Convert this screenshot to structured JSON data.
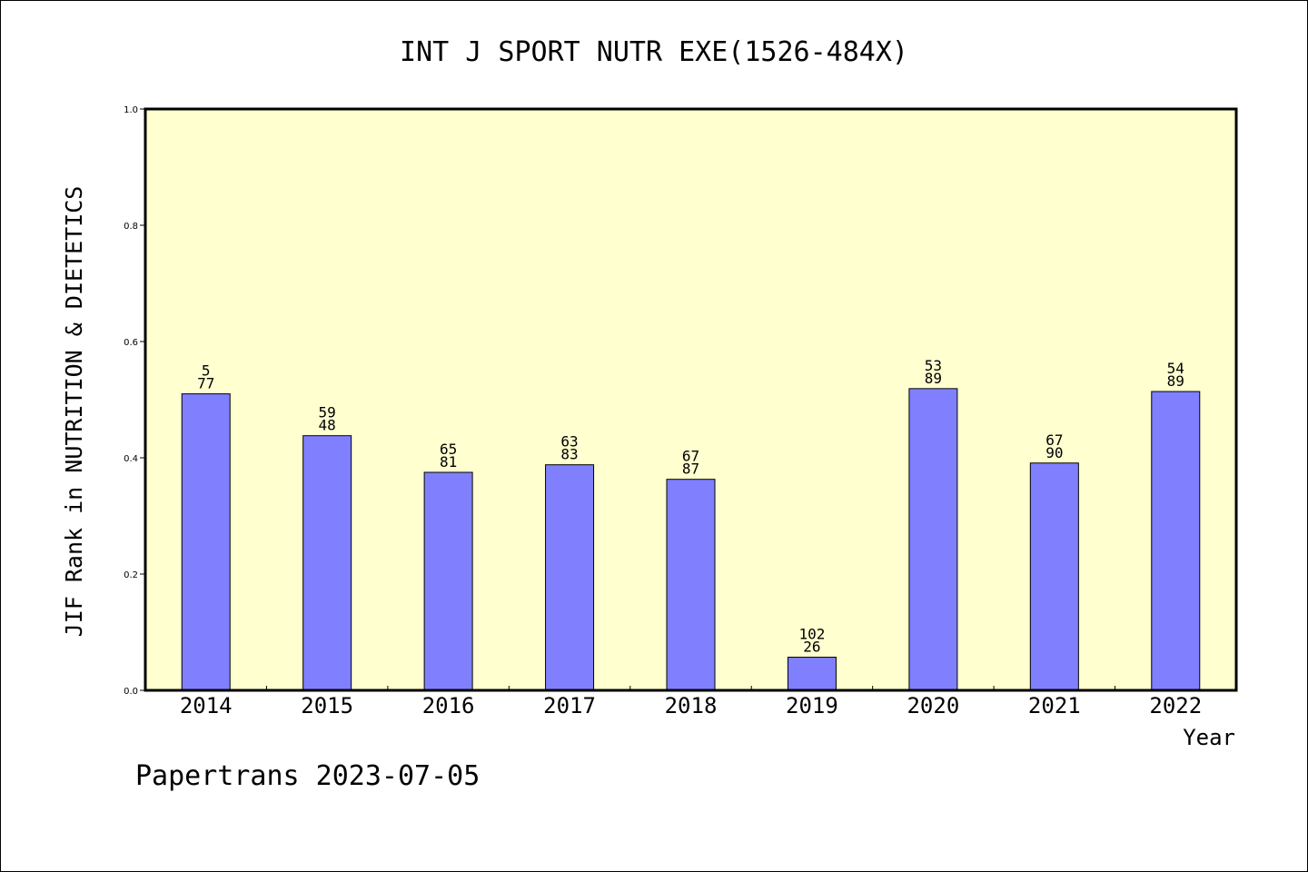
{
  "chart_data": {
    "type": "bar",
    "title": "INT J SPORT NUTR EXE(1526-484X)",
    "xlabel": "Year",
    "ylabel": "JIF Rank in NUTRITION & DIETETICS",
    "ylim": [
      0,
      1.0
    ],
    "yticks": [
      "0.0",
      "0.2",
      "0.4",
      "0.6",
      "0.8",
      "1.0"
    ],
    "categories": [
      "2014",
      "2015",
      "2016",
      "2017",
      "2018",
      "2019",
      "2020",
      "2021",
      "2022"
    ],
    "values": [
      0.51,
      0.438,
      0.375,
      0.388,
      0.363,
      0.057,
      0.519,
      0.391,
      0.514
    ],
    "bar_labels": [
      [
        "5",
        "77"
      ],
      [
        "59",
        "48"
      ],
      [
        "65",
        "81"
      ],
      [
        "63",
        "83"
      ],
      [
        "67",
        "87"
      ],
      [
        "102",
        "26"
      ],
      [
        "53",
        "89"
      ],
      [
        "67",
        "90"
      ],
      [
        "54",
        "89"
      ]
    ],
    "bar_color": "#8080ff",
    "plot_background": "#ffffd0",
    "grid": false
  },
  "footer": {
    "text": "Papertrans 2023-07-05"
  }
}
